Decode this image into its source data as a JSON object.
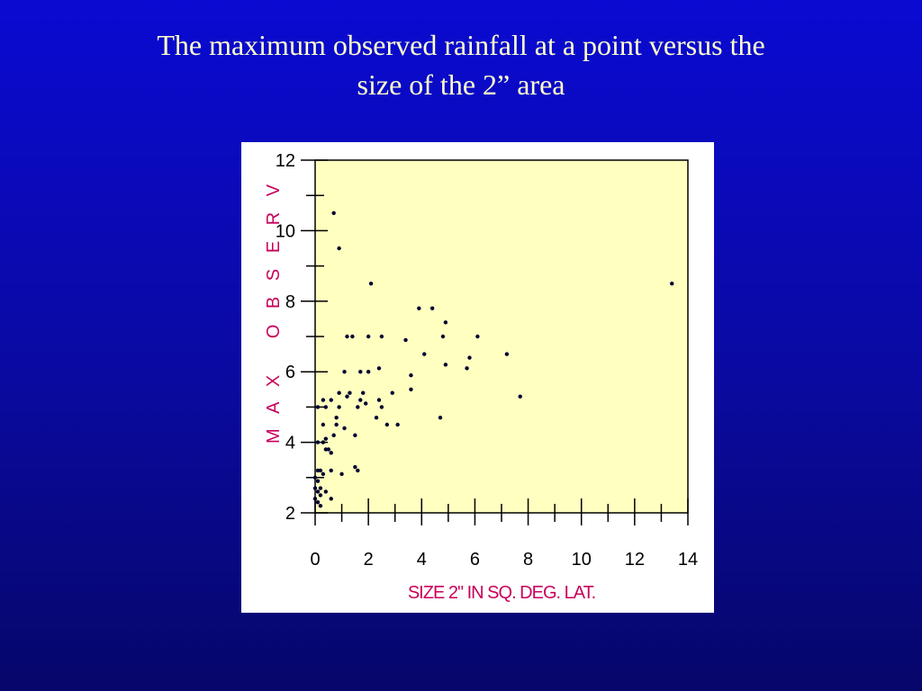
{
  "title": {
    "line1": "The maximum observed rainfall at a point versus the",
    "line2": "size of the 2” area"
  },
  "colors": {
    "background_top": "#0a0ad2",
    "background_bottom": "#06066a",
    "title_text": "#ffffcc",
    "plot_area": "#ffffc0",
    "axis_label": "#c8005a",
    "points": "#000033"
  },
  "chart_data": {
    "type": "scatter",
    "title": "",
    "xlabel": "SIZE 2\" IN SQ. DEG. LAT.",
    "ylabel": "M A X   O B S E R V",
    "xlim": [
      0,
      14
    ],
    "ylim": [
      2,
      12
    ],
    "xticks": [
      0,
      2,
      4,
      6,
      8,
      10,
      12,
      14
    ],
    "yticks": [
      2,
      4,
      6,
      8,
      10,
      12
    ],
    "grid": false,
    "legend": "none",
    "points": [
      [
        0.7,
        10.5
      ],
      [
        0.9,
        9.5
      ],
      [
        2.1,
        8.5
      ],
      [
        13.4,
        8.5
      ],
      [
        3.9,
        7.8
      ],
      [
        4.4,
        7.8
      ],
      [
        4.9,
        7.4
      ],
      [
        4.8,
        7.0
      ],
      [
        6.1,
        7.0
      ],
      [
        1.2,
        7.0
      ],
      [
        1.4,
        7.0
      ],
      [
        2.0,
        7.0
      ],
      [
        2.5,
        7.0
      ],
      [
        3.4,
        6.9
      ],
      [
        4.1,
        6.5
      ],
      [
        5.8,
        6.4
      ],
      [
        7.2,
        6.5
      ],
      [
        4.9,
        6.2
      ],
      [
        5.7,
        6.1
      ],
      [
        2.4,
        6.1
      ],
      [
        1.1,
        6.0
      ],
      [
        1.7,
        6.0
      ],
      [
        2.0,
        6.0
      ],
      [
        3.6,
        5.9
      ],
      [
        0.9,
        5.4
      ],
      [
        1.2,
        5.3
      ],
      [
        1.3,
        5.4
      ],
      [
        1.8,
        5.4
      ],
      [
        2.9,
        5.4
      ],
      [
        1.7,
        5.2
      ],
      [
        2.4,
        5.2
      ],
      [
        0.3,
        5.2
      ],
      [
        0.6,
        5.2
      ],
      [
        0.1,
        5.0
      ],
      [
        0.4,
        5.0
      ],
      [
        0.9,
        5.0
      ],
      [
        1.6,
        5.0
      ],
      [
        2.5,
        5.0
      ],
      [
        3.6,
        5.5
      ],
      [
        7.7,
        5.3
      ],
      [
        1.9,
        5.1
      ],
      [
        0.8,
        4.7
      ],
      [
        2.3,
        4.7
      ],
      [
        4.7,
        4.7
      ],
      [
        0.3,
        4.5
      ],
      [
        0.8,
        4.5
      ],
      [
        2.7,
        4.5
      ],
      [
        3.1,
        4.5
      ],
      [
        0.7,
        4.2
      ],
      [
        1.5,
        4.2
      ],
      [
        1.1,
        4.4
      ],
      [
        0.1,
        4.0
      ],
      [
        0.3,
        4.0
      ],
      [
        0.4,
        4.1
      ],
      [
        0.4,
        3.8
      ],
      [
        0.6,
        3.7
      ],
      [
        0.5,
        3.8
      ],
      [
        0.1,
        3.2
      ],
      [
        0.2,
        3.2
      ],
      [
        0.3,
        3.1
      ],
      [
        0.6,
        3.2
      ],
      [
        1.0,
        3.1
      ],
      [
        1.5,
        3.3
      ],
      [
        1.6,
        3.2
      ],
      [
        0.0,
        3.0
      ],
      [
        0.1,
        2.9
      ],
      [
        0.2,
        2.7
      ],
      [
        0.1,
        2.6
      ],
      [
        0.4,
        2.6
      ],
      [
        0.2,
        2.5
      ],
      [
        0.6,
        2.4
      ],
      [
        0.1,
        2.3
      ],
      [
        0.2,
        2.2
      ],
      [
        0.0,
        2.4
      ],
      [
        0.0,
        2.7
      ]
    ]
  }
}
